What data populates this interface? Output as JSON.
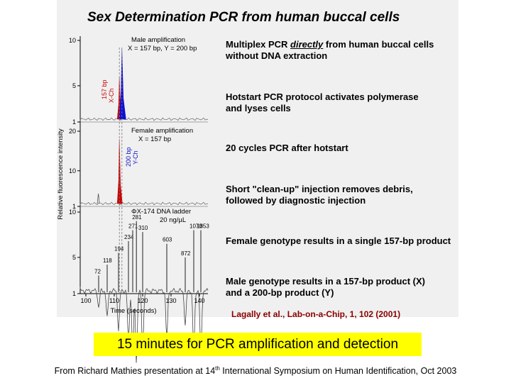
{
  "title": "Sex Determination PCR from human buccal cells",
  "notes": [
    {
      "line1": "Multiplex PCR directly from human buccal cells",
      "line2": "without DNA extraction"
    },
    {
      "line1": "Hotstart PCR protocol activates polymerase",
      "line2": "and lyses cells"
    },
    {
      "line1": "20 cycles PCR after hotstart",
      "line2": ""
    },
    {
      "line1": "Short \"clean-up\" injection removes debris,",
      "line2": "followed by diagnostic injection"
    },
    {
      "line1": "Female genotype results in a single 157-bp product",
      "line2": ""
    },
    {
      "line1": "Male genotype results in a 157-bp product (X)",
      "line2": "and a 200-bp product (Y)"
    }
  ],
  "citation": "Lagally et al., Lab-on-a-Chip, 1, 102 (2001)",
  "banner": "15 minutes for PCR amplification and detection",
  "footer": {
    "pre": "From Richard Mathies presentation at 14",
    "sup": "th",
    "post": " International Symposium on Human Identification, Oct 2003"
  },
  "colors": {
    "x_peak": "#cc0000",
    "y_peak": "#1010d0",
    "citation": "#8b0000",
    "banner": "#ffff00",
    "panel": "#f0f0f0"
  },
  "chart_data": {
    "type": "line",
    "xlabel": "Time (seconds)",
    "ylabel": "Relative fluorescence intensity",
    "xlim": [
      98,
      143
    ],
    "x_ticks": [
      "100",
      "110",
      "120",
      "130",
      "140"
    ],
    "panels": [
      {
        "name": "Male amplification",
        "caption_line1": "Male amplification",
        "caption_line2": "X = 157 bp, Y = 200 bp",
        "ylim": [
          1,
          10
        ],
        "y_ticks": [
          "1",
          "5",
          "10"
        ],
        "peaks": [
          {
            "label_line1": "157 bp",
            "label_line2": "X-Ch",
            "x": 111.8,
            "height": 6.0,
            "color": "#cc0000"
          },
          {
            "label_line1": "",
            "label_line2": "",
            "x": 112.7,
            "height": 9.0,
            "color": "#1010d0"
          }
        ]
      },
      {
        "name": "Female amplification",
        "caption_line1": "Female amplification",
        "caption_line2": "X = 157 bp",
        "ylim": [
          1,
          20
        ],
        "y_ticks": [
          "1",
          "10",
          "20"
        ],
        "peaks": [
          {
            "label_line1": "",
            "label_line2": "",
            "x": 111.8,
            "height": 18.0,
            "color": "#cc0000"
          },
          {
            "label_line1": "200 bp",
            "label_line2": "Y-Ch",
            "x": 112.7,
            "height": 0,
            "color": "#1010d0"
          }
        ]
      },
      {
        "name": "ΦX-174 DNA ladder",
        "caption_line1": "ΦX-174 DNA ladder",
        "caption_line2": "20 ng/µL",
        "ylim": [
          1,
          10
        ],
        "y_ticks": [
          "1",
          "5",
          "10"
        ],
        "ladder": [
          {
            "label": "72",
            "x": 104.5,
            "height": 3.0
          },
          {
            "label": "118",
            "x": 107.5,
            "height": 4.2
          },
          {
            "label": "194",
            "x": 111.5,
            "height": 5.5
          },
          {
            "label": "234",
            "x": 115.0,
            "height": 6.8
          },
          {
            "label": "271",
            "x": 116.5,
            "height": 8.0
          },
          {
            "label": "281",
            "x": 117.8,
            "height": 9.0
          },
          {
            "label": "310",
            "x": 120.0,
            "height": 7.8
          },
          {
            "label": "603",
            "x": 128.5,
            "height": 6.5
          },
          {
            "label": "872",
            "x": 135.0,
            "height": 5.0
          },
          {
            "label": "1078",
            "x": 138.0,
            "height": 8.0
          },
          {
            "label": "1353",
            "x": 140.5,
            "height": 8.0
          }
        ]
      }
    ]
  }
}
